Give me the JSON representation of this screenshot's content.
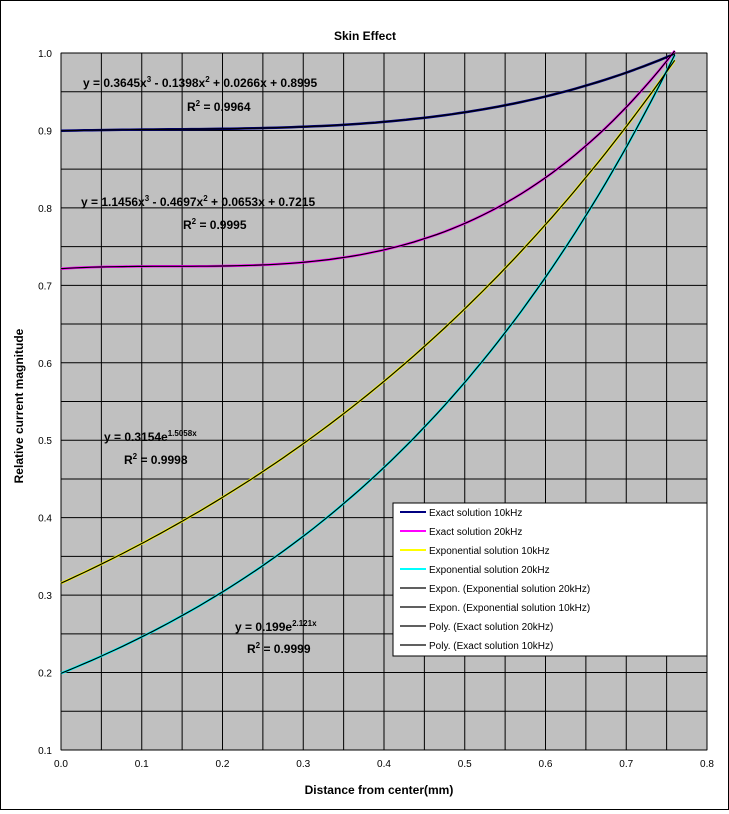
{
  "chart_data": {
    "type": "line",
    "title": "Skin Effect",
    "xlabel": "Distance from center(mm)",
    "ylabel": "Relative current magnitude",
    "xlim": [
      0,
      0.8
    ],
    "ylim": [
      0.1,
      1.0
    ],
    "xticks": [
      "0.0",
      "0.1",
      "0.2",
      "0.3",
      "0.4",
      "0.5",
      "0.6",
      "0.7",
      "0.8"
    ],
    "yticks": [
      "0.1",
      "0.2",
      "0.3",
      "0.4",
      "0.5",
      "0.6",
      "0.7",
      "0.8",
      "0.9",
      "1.0"
    ],
    "plot_background": "#c0c0c0",
    "grid": true,
    "legend_position": "bottom-right",
    "series": [
      {
        "name": "Exact solution 10kHz",
        "color": "#000080",
        "type": "exact",
        "fit": {
          "kind": "poly",
          "coef": [
            0.8995,
            0.0266,
            -0.1398,
            0.3645
          ]
        }
      },
      {
        "name": "Exact solution 20kHz",
        "color": "#ff00ff",
        "type": "exact",
        "fit": {
          "kind": "poly",
          "coef": [
            0.7215,
            0.0653,
            -0.4697,
            1.1456
          ]
        }
      },
      {
        "name": "Exponential solution 10kHz",
        "color": "#ffff00",
        "type": "exact",
        "fit": {
          "kind": "exp",
          "a": 0.3154,
          "b": 1.5058
        }
      },
      {
        "name": "Exponential solution 20kHz",
        "color": "#00ffff",
        "type": "exact",
        "fit": {
          "kind": "exp",
          "a": 0.199,
          "b": 2.121
        }
      },
      {
        "name": "Expon. (Exponential solution 20kHz)",
        "color": "#000000",
        "type": "trend",
        "fit": {
          "kind": "exp",
          "a": 0.199,
          "b": 2.121
        }
      },
      {
        "name": "Expon. (Exponential solution 10kHz)",
        "color": "#000000",
        "type": "trend",
        "fit": {
          "kind": "exp",
          "a": 0.3154,
          "b": 1.5058
        }
      },
      {
        "name": "Poly. (Exact solution 20kHz)",
        "color": "#000000",
        "type": "trend",
        "fit": {
          "kind": "poly",
          "coef": [
            0.7215,
            0.0653,
            -0.4697,
            1.1456
          ]
        }
      },
      {
        "name": "Poly. (Exact solution 10kHz)",
        "color": "#000000",
        "type": "trend",
        "fit": {
          "kind": "poly",
          "coef": [
            0.8995,
            0.0266,
            -0.1398,
            0.3645
          ]
        }
      }
    ],
    "x_max": 0.76,
    "annotations": [
      {
        "eq_pre": "y = 0.3645x",
        "eq_parts": [
          [
            "3",
            " - 0.1398x"
          ],
          [
            "2",
            " + 0.0266x + 0.8995"
          ]
        ],
        "r2": "0.9964"
      },
      {
        "eq_pre": "y = 1.1456x",
        "eq_parts": [
          [
            "3",
            " - 0.4697x"
          ],
          [
            "2",
            " + 0.0653x + 0.7215"
          ]
        ],
        "r2": "0.9995"
      },
      {
        "eq_pre": "y = 0.3154e",
        "eq_parts": [
          [
            "1.5058x",
            ""
          ]
        ],
        "r2": "0.9998"
      },
      {
        "eq_pre": "y = 0.199e",
        "eq_parts": [
          [
            "2.121x",
            ""
          ]
        ],
        "r2": "0.9999"
      }
    ],
    "r2_prefix": "R",
    "r2_sup": "2",
    "r2_eq": " = "
  }
}
